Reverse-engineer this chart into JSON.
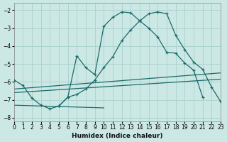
{
  "xlabel": "Humidex (Indice chaleur)",
  "xlim": [
    0,
    23
  ],
  "ylim": [
    -8.2,
    -1.6
  ],
  "yticks": [
    -8,
    -7,
    -6,
    -5,
    -4,
    -3,
    -2
  ],
  "xticks": [
    0,
    1,
    2,
    3,
    4,
    5,
    6,
    7,
    8,
    9,
    10,
    11,
    12,
    13,
    14,
    15,
    16,
    17,
    18,
    19,
    20,
    21,
    22,
    23
  ],
  "bg_color": "#cce8e5",
  "grid_color": "#aed4d0",
  "line_color": "#1a6b6b",
  "curve1_x": [
    0,
    1,
    2,
    3,
    4,
    5,
    6,
    7,
    8,
    9,
    10,
    11,
    12,
    13,
    14,
    15,
    16,
    17,
    18,
    19,
    20,
    21,
    22,
    23
  ],
  "curve1_y": [
    -5.9,
    -6.2,
    -6.9,
    -7.3,
    -7.5,
    -7.35,
    -6.85,
    -6.7,
    -6.4,
    -5.9,
    -5.2,
    -4.6,
    -3.7,
    -3.1,
    -2.6,
    -2.2,
    -2.1,
    -2.2,
    -3.4,
    -4.2,
    -4.9,
    -5.3,
    -6.3,
    -7.1
  ],
  "curve2_x": [
    5,
    6,
    7,
    8,
    9,
    10,
    11,
    12,
    13,
    14,
    15,
    16,
    17,
    18,
    19,
    20,
    21
  ],
  "curve2_y": [
    -7.35,
    -6.85,
    -4.55,
    -5.2,
    -5.6,
    -2.9,
    -2.4,
    -2.1,
    -2.15,
    -2.6,
    -3.0,
    -3.5,
    -4.35,
    -4.4,
    -4.95,
    -5.35,
    -6.85
  ],
  "line1_x": [
    0,
    10
  ],
  "line1_y": [
    -7.3,
    -7.45
  ],
  "line2_x": [
    0,
    23
  ],
  "line2_y": [
    -6.4,
    -5.5
  ],
  "line3_x": [
    0,
    23
  ],
  "line3_y": [
    -6.6,
    -5.85
  ]
}
